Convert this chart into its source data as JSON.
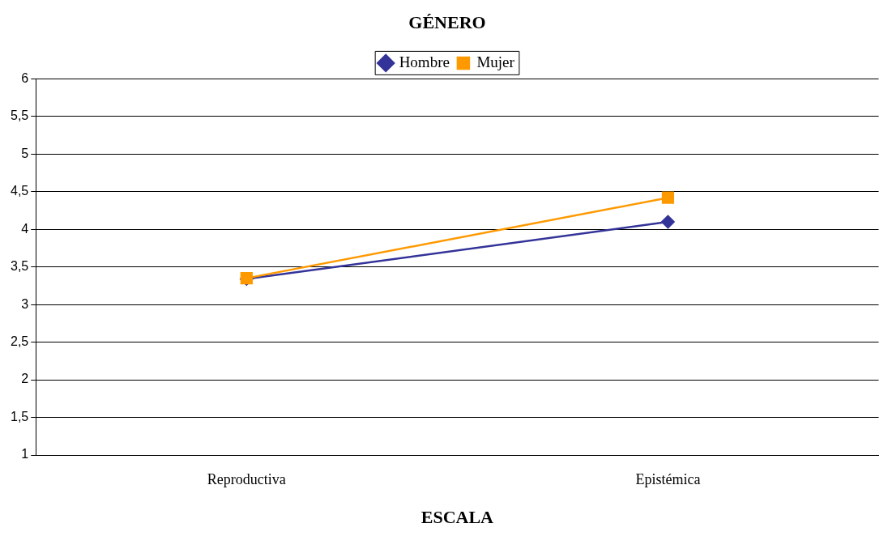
{
  "chart_data": {
    "type": "line",
    "title": "GÉNERO",
    "xlabel": "ESCALA",
    "categories": [
      "Reproductiva",
      "Epistémica"
    ],
    "series": [
      {
        "name": "Hombre",
        "color": "#333399",
        "values": [
          3.34,
          4.1
        ],
        "marker": "diamond"
      },
      {
        "name": "Mujer",
        "color": "#ff9900",
        "values": [
          3.35,
          4.42
        ],
        "marker": "square"
      }
    ],
    "ylim": [
      1,
      6
    ],
    "yticks": [
      1,
      {
        "value": 1.5,
        "label": "1,5"
      },
      2,
      {
        "value": 2.5,
        "label": "2,5"
      },
      3,
      {
        "value": 3.5,
        "label": "3,5"
      },
      4,
      {
        "value": 4.5,
        "label": "4,5"
      },
      5,
      {
        "value": 5.5,
        "label": "5,5"
      },
      6
    ],
    "grid": "y",
    "legend": "top",
    "line_style": "solid"
  }
}
